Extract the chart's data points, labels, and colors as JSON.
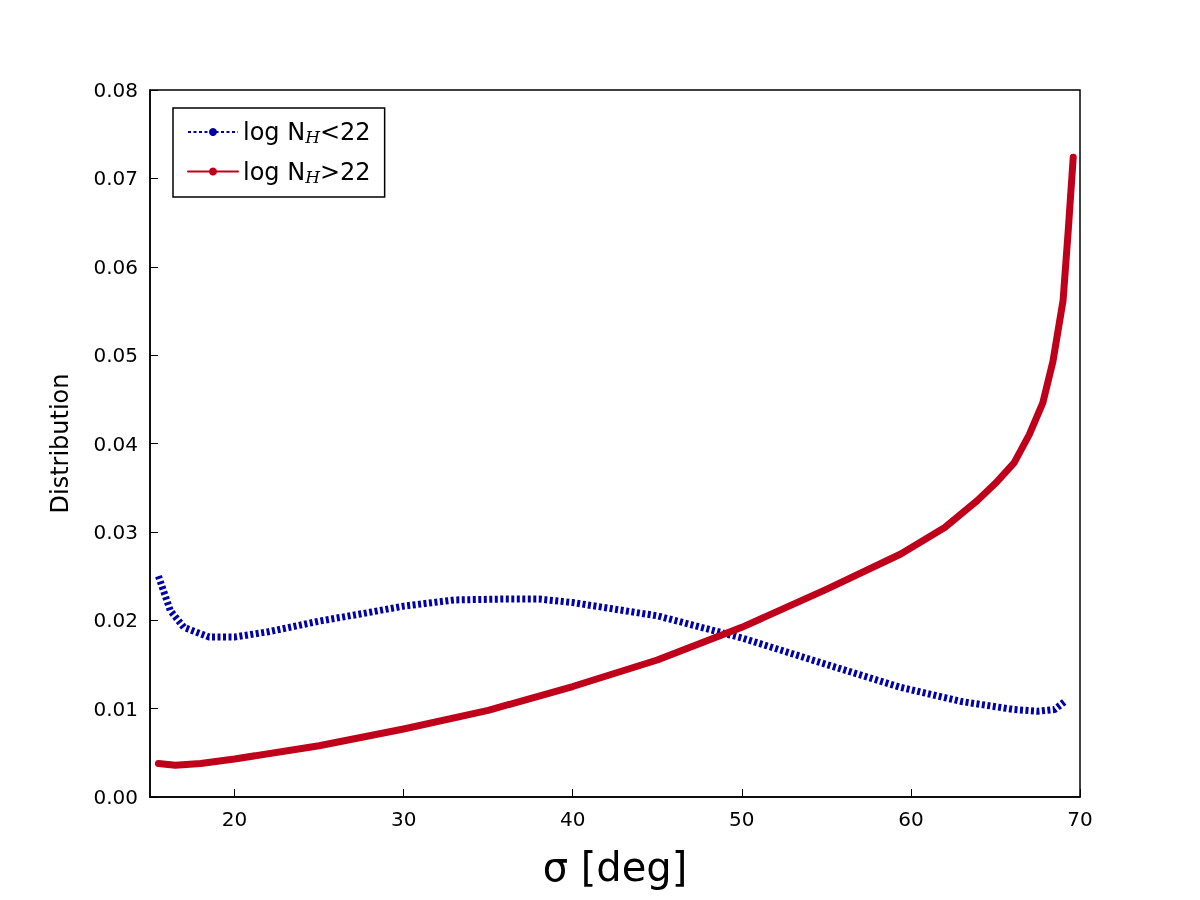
{
  "chart_data": {
    "type": "line",
    "xlabel": "σ [deg]",
    "ylabel": "Distribution",
    "xlim": [
      15,
      70
    ],
    "xticks": [
      20,
      30,
      40,
      50,
      60,
      70
    ],
    "ylim": [
      0,
      0.08
    ],
    "yticks": [
      {
        "value": 0,
        "label": "0.00"
      },
      {
        "value": 0.01,
        "label": "0.01"
      },
      {
        "value": 0.02,
        "label": "0.02"
      },
      {
        "value": 0.03,
        "label": "0.03"
      },
      {
        "value": 0.04,
        "label": "0.04"
      },
      {
        "value": 0.05,
        "label": "0.05"
      },
      {
        "value": 0.06,
        "label": "0.06"
      },
      {
        "value": 0.07,
        "label": "0.07"
      },
      {
        "value": 0.08,
        "label": "0.08"
      }
    ],
    "grid": false,
    "legend": "top left",
    "marker": "none",
    "series": [
      {
        "name": "log N$_{H}$<22",
        "color": "#0000aa",
        "line_style": "dashed",
        "x": [
          15.5,
          16.2,
          17,
          18.5,
          20,
          22,
          25,
          28,
          30,
          33,
          36,
          38,
          40,
          45,
          50,
          55,
          59.4,
          63,
          66.1,
          67.5,
          68.5,
          69.1
        ],
        "values": [
          0.025,
          0.0211,
          0.0192,
          0.0181,
          0.0181,
          0.0187,
          0.0199,
          0.0209,
          0.0216,
          0.0223,
          0.0224,
          0.0224,
          0.022,
          0.0205,
          0.018,
          0.015,
          0.0124,
          0.0108,
          0.0099,
          0.0097,
          0.0099,
          0.0108
        ]
      },
      {
        "name": "log N$_{H}$>22",
        "color": "#c0001a",
        "line_style": "solid",
        "x": [
          15.5,
          16.5,
          18,
          20,
          25,
          30,
          35,
          40,
          45,
          50,
          55,
          59.4,
          62,
          63.9,
          65,
          66.1,
          67,
          67.8,
          68.4,
          69,
          69.3,
          69.6
        ],
        "values": [
          0.0038,
          0.0036,
          0.0038,
          0.0043,
          0.0058,
          0.0077,
          0.0098,
          0.0125,
          0.0155,
          0.0192,
          0.0235,
          0.0275,
          0.0305,
          0.0335,
          0.0355,
          0.0378,
          0.041,
          0.0446,
          0.0493,
          0.0562,
          0.064,
          0.0724
        ]
      }
    ]
  }
}
